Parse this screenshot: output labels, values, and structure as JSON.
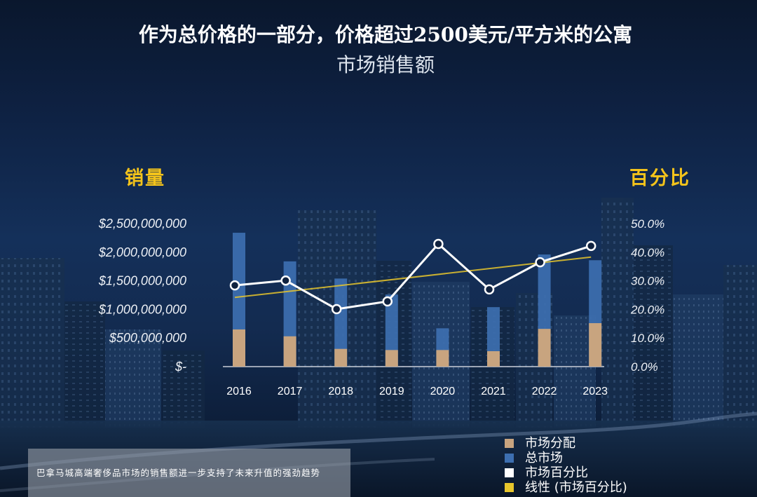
{
  "theme": {
    "axis_label_color": "#f3c31b"
  },
  "caption": "巴拿马城高端奢侈品市场的销售额进一步支持了未来升值的强劲趋势",
  "chart_data": {
    "type": "bar",
    "title": "作为总价格的一部分，价格超过2500美元/平方米的公寓",
    "subtitle": "市场销售额",
    "ylabel": "销量",
    "y2label": "百分比",
    "categories": [
      "2016",
      "2017",
      "2018",
      "2019",
      "2020",
      "2021",
      "2022",
      "2023"
    ],
    "ylim": [
      0,
      2500000000
    ],
    "y2lim": [
      0,
      50
    ],
    "yticks": [
      {
        "value": 2500000000,
        "label": "$2,500,000,000"
      },
      {
        "value": 2000000000,
        "label": "$2,000,000,000"
      },
      {
        "value": 1500000000,
        "label": "$1,500,000,000"
      },
      {
        "value": 1000000000,
        "label": "$1,000,000,000"
      },
      {
        "value": 500000000,
        "label": "$500,000,000"
      },
      {
        "value": 0,
        "label": "$-"
      }
    ],
    "y2ticks": [
      {
        "value": 50,
        "label": "50.0%"
      },
      {
        "value": 40,
        "label": "40.0%"
      },
      {
        "value": 30,
        "label": "30.0%"
      },
      {
        "value": 20,
        "label": "20.0%"
      },
      {
        "value": 10,
        "label": "10.0%"
      },
      {
        "value": 0,
        "label": "0.0%"
      }
    ],
    "series": [
      {
        "name": "市场分配",
        "type": "bar",
        "axis": "left",
        "color": "#c8a47f",
        "values": [
          650000000,
          530000000,
          310000000,
          290000000,
          290000000,
          270000000,
          660000000,
          760000000
        ]
      },
      {
        "name": "总市场",
        "type": "bar",
        "axis": "left",
        "color": "#3d6fb0",
        "values": [
          2340000000,
          1840000000,
          1540000000,
          1260000000,
          670000000,
          1040000000,
          1960000000,
          1860000000
        ]
      },
      {
        "name": "市场百分比",
        "type": "line",
        "axis": "right",
        "color": "#ffffff",
        "values": [
          28.4,
          30.1,
          20.1,
          22.8,
          42.9,
          27.0,
          36.5,
          42.2
        ]
      },
      {
        "name": "线性 (市场百分比)",
        "type": "trendline",
        "fit": "linear",
        "axis": "right",
        "color": "#e8c62c"
      }
    ],
    "grid": false,
    "legend": {
      "position": "bottom-right"
    }
  }
}
